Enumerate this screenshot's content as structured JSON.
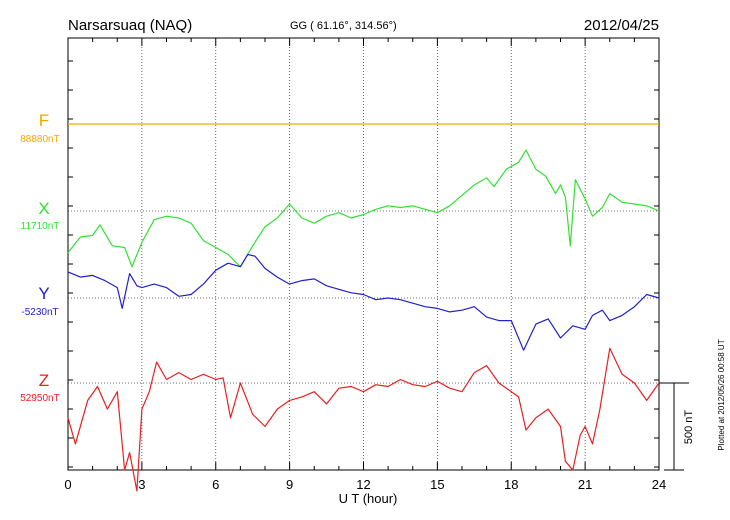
{
  "chart_data": {
    "type": "line",
    "title": "Narsarsuaq (NAQ)",
    "coords": "GG ( 61.16°, 314.56°)",
    "date": "2012/04/25",
    "xlabel": "U T (hour)",
    "xlim": [
      0,
      24
    ],
    "xticks": [
      "0",
      "3",
      "6",
      "9",
      "12",
      "15",
      "18",
      "21",
      "24"
    ],
    "scale_label": "500 nT",
    "plotted_label": "Plotted at 2012/05/26 00:58 UT",
    "grid": true,
    "series": [
      {
        "name": "F",
        "baseline_label": "88880nT",
        "color": "#f0a800",
        "x": [
          0,
          24
        ],
        "values": [
          0,
          0
        ]
      },
      {
        "name": "X",
        "baseline_label": "11710nT",
        "color": "#33e033",
        "x": [
          0,
          0.5,
          1,
          1.3,
          1.8,
          2.3,
          2.6,
          3,
          3.5,
          4,
          4.5,
          5,
          5.5,
          6,
          6.5,
          7,
          7.5,
          8,
          8.5,
          9,
          9.5,
          10,
          10.5,
          11,
          11.5,
          12,
          12.5,
          13,
          13.5,
          14,
          14.5,
          15,
          15.5,
          16,
          16.5,
          17,
          17.3,
          17.8,
          18.3,
          18.6,
          19,
          19.4,
          19.8,
          20,
          20.2,
          20.4,
          20.6,
          21,
          21.3,
          21.7,
          22,
          22.5,
          23,
          23.5,
          24
        ],
        "values": [
          -240,
          -150,
          -140,
          -80,
          -200,
          -210,
          -320,
          -180,
          -50,
          -30,
          -40,
          -70,
          -170,
          -210,
          -250,
          -320,
          -200,
          -90,
          -40,
          40,
          -40,
          -70,
          -30,
          -10,
          -40,
          -20,
          10,
          30,
          20,
          30,
          10,
          -10,
          30,
          90,
          150,
          190,
          140,
          240,
          280,
          350,
          240,
          200,
          100,
          150,
          80,
          -200,
          180,
          70,
          -30,
          20,
          100,
          50,
          40,
          30,
          0
        ]
      },
      {
        "name": "Y",
        "baseline_label": "-5230nT",
        "color": "#2020d0",
        "x": [
          0,
          0.5,
          1,
          1.5,
          2,
          2.2,
          2.5,
          2.8,
          3,
          3.5,
          4,
          4.5,
          5,
          5.5,
          6,
          6.5,
          7,
          7.3,
          7.6,
          8,
          8.5,
          9,
          9.5,
          10,
          10.5,
          11,
          11.5,
          12,
          12.5,
          13,
          13.5,
          14,
          14.5,
          15,
          15.5,
          16,
          16.5,
          17,
          17.5,
          18,
          18.5,
          19,
          19.5,
          20,
          20.5,
          21,
          21.3,
          21.7,
          22,
          22.5,
          23,
          23.5,
          24
        ],
        "values": [
          150,
          120,
          130,
          100,
          60,
          -60,
          140,
          70,
          60,
          80,
          60,
          10,
          20,
          80,
          160,
          200,
          180,
          250,
          240,
          170,
          120,
          80,
          100,
          110,
          70,
          50,
          30,
          20,
          -10,
          0,
          -10,
          -30,
          -50,
          -60,
          -80,
          -70,
          -50,
          -110,
          -130,
          -130,
          -300,
          -150,
          -120,
          -230,
          -160,
          -180,
          -100,
          -70,
          -130,
          -100,
          -50,
          20,
          0
        ]
      },
      {
        "name": "Z",
        "baseline_label": "52950nT",
        "color": "#e82020",
        "x": [
          0,
          0.3,
          0.8,
          1.2,
          1.6,
          2,
          2.3,
          2.5,
          2.8,
          3,
          3.3,
          3.6,
          4,
          4.5,
          5,
          5.5,
          6,
          6.3,
          6.6,
          7,
          7.5,
          8,
          8.5,
          9,
          9.5,
          10,
          10.5,
          11,
          11.5,
          12,
          12.5,
          13,
          13.5,
          14,
          14.5,
          15,
          15.5,
          16,
          16.5,
          17,
          17.5,
          18,
          18.3,
          18.6,
          19,
          19.5,
          20,
          20.2,
          20.5,
          20.8,
          21,
          21.3,
          21.6,
          22,
          22.5,
          23,
          23.5,
          24
        ],
        "values": [
          -200,
          -350,
          -100,
          -20,
          -150,
          -50,
          -500,
          -400,
          -620,
          -150,
          -50,
          120,
          20,
          60,
          20,
          50,
          20,
          30,
          -200,
          0,
          -180,
          -250,
          -150,
          -100,
          -80,
          -50,
          -120,
          -30,
          -20,
          -50,
          -10,
          -20,
          20,
          -10,
          -20,
          10,
          -30,
          -50,
          60,
          100,
          0,
          -50,
          -80,
          -270,
          -200,
          -150,
          -250,
          -450,
          -500,
          -300,
          -250,
          -350,
          -150,
          200,
          50,
          0,
          -100,
          0
        ]
      }
    ]
  }
}
